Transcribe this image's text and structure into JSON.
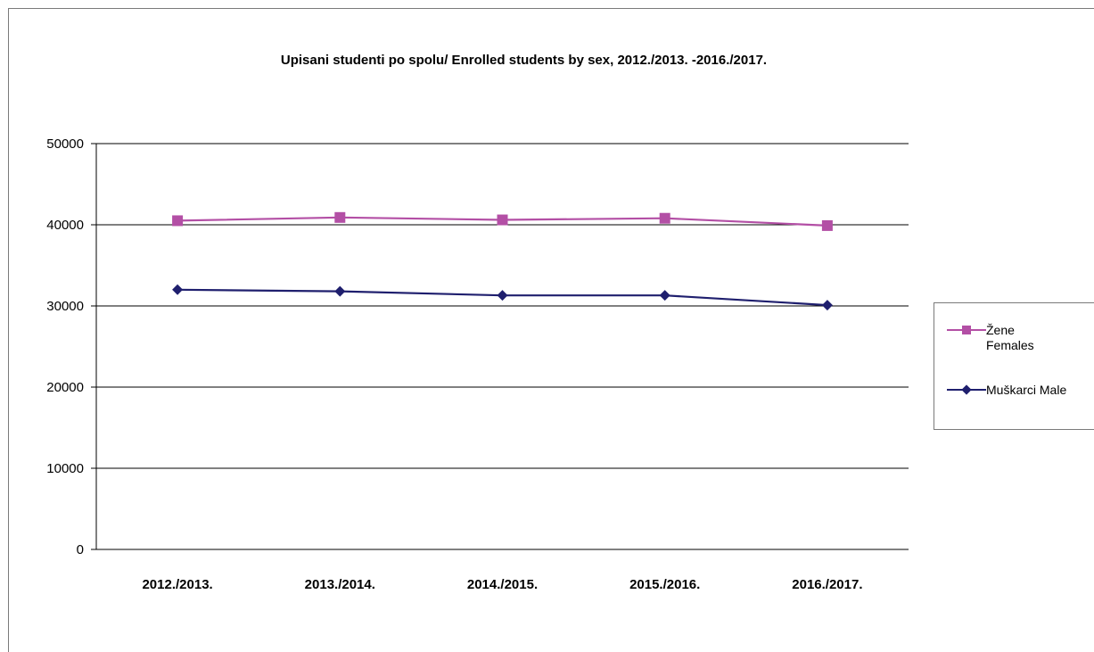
{
  "chart_data": {
    "type": "line",
    "title": "Upisani studenti po spolu/ Enrolled students by sex, 2012./2013. -2016./2017.",
    "categories": [
      "2012./2013.",
      "2013./2014.",
      "2014./2015.",
      "2015./2016.",
      "2016./2017."
    ],
    "ylim": [
      0,
      50000
    ],
    "yticks": [
      0,
      10000,
      20000,
      30000,
      40000,
      50000
    ],
    "grid": true,
    "legend_position": "right",
    "series": [
      {
        "name": "Žene Females",
        "label_lines": [
          "Žene",
          "Females"
        ],
        "values": [
          40500,
          40900,
          40600,
          40800,
          39900
        ],
        "color": "#b34fa5",
        "marker": "square"
      },
      {
        "name": "Muškarci Male",
        "label_lines": [
          "Muškarci Male"
        ],
        "values": [
          32000,
          31800,
          31300,
          31300,
          30100
        ],
        "color": "#1f1f6e",
        "marker": "diamond"
      }
    ]
  }
}
